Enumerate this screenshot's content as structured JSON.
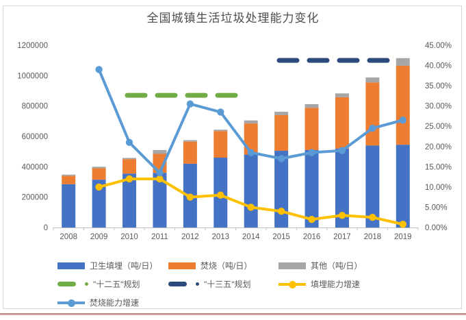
{
  "chart_data": {
    "type": "bar",
    "subtype": "stacked-bar-with-lines",
    "title": "全国城镇生活垃圾处理能力变化",
    "categories": [
      "2008",
      "2009",
      "2010",
      "2011",
      "2012",
      "2013",
      "2014",
      "2015",
      "2016",
      "2017",
      "2018",
      "2019"
    ],
    "bar_series": [
      {
        "key": "landfill",
        "name": "卫生填埋（吨/日）",
        "color": "#4472C4",
        "values": [
          285000,
          315000,
          355000,
          360000,
          420000,
          460000,
          480000,
          505000,
          510000,
          520000,
          540000,
          545000
        ]
      },
      {
        "key": "incineration",
        "name": "焚烧（吨/日）",
        "color": "#ED7D31",
        "values": [
          55000,
          75000,
          95000,
          125000,
          145000,
          175000,
          205000,
          235000,
          278000,
          338000,
          415000,
          520000
        ]
      },
      {
        "key": "other",
        "name": "其他（吨/日）",
        "color": "#A6A6A6",
        "values": [
          8000,
          10000,
          8000,
          25000,
          10000,
          9000,
          20000,
          22000,
          24000,
          25000,
          33000,
          50000
        ]
      }
    ],
    "line_series": [
      {
        "key": "landfill-growth",
        "name": "填埋能力增速",
        "color": "#FFC000",
        "axis": "right",
        "unit": "%",
        "values": [
          null,
          10,
          12,
          12,
          7.5,
          8,
          5,
          4,
          2,
          3,
          2.5,
          0.8
        ]
      },
      {
        "key": "incineration-growth",
        "name": "焚烧能力增速",
        "color": "#5B9BD5",
        "axis": "right",
        "unit": "%",
        "values": [
          null,
          39,
          21,
          13.5,
          30.5,
          28.5,
          18.5,
          17,
          18.5,
          19,
          24.5,
          26.5
        ]
      }
    ],
    "plan_lines": [
      {
        "key": "plan-12th-5yr",
        "name": "\"十二五\"规划",
        "color": "#70AD47",
        "value": 870000,
        "span": [
          "2010",
          "2013"
        ]
      },
      {
        "key": "plan-13th-5yr",
        "name": "\"十三五\"规划",
        "color": "#2A4B7C",
        "value": 1100000,
        "span": [
          "2015",
          "2019"
        ]
      }
    ],
    "left_axis": {
      "min": 0,
      "max": 1200000,
      "step": 200000,
      "values": [
        0,
        200000,
        400000,
        600000,
        800000,
        1000000,
        1200000
      ],
      "labels": [
        "0",
        "200000",
        "400000",
        "600000",
        "800000",
        "1000000",
        "1200000"
      ]
    },
    "right_axis": {
      "min": 0,
      "max": 45,
      "step": 5,
      "values": [
        0,
        5,
        10,
        15,
        20,
        25,
        30,
        35,
        40,
        45
      ],
      "labels": [
        "0.00%",
        "5.00%",
        "10.00%",
        "15.00%",
        "20.00%",
        "25.00%",
        "30.00%",
        "35.00%",
        "40.00%",
        "45.00%"
      ]
    },
    "grid": "off",
    "legend_position": "bottom-left",
    "legend_rows": [
      [
        {
          "label": "卫生填埋（吨/日）",
          "type": "bar",
          "color": "#4472C4",
          "key": "landfill"
        },
        {
          "label": "焚烧（吨/日）",
          "type": "bar",
          "color": "#ED7D31",
          "key": "incineration"
        },
        {
          "label": "其他（吨/日）",
          "type": "bar",
          "color": "#A6A6A6",
          "key": "other"
        }
      ],
      [
        {
          "label": "\"十二五\"规划",
          "type": "dash-dot",
          "color": "#70AD47",
          "key": "plan-12th-5yr"
        },
        {
          "label": "\"十三五\"规划",
          "type": "dash-dot",
          "color": "#2A4B7C",
          "key": "plan-13th-5yr"
        },
        {
          "label": "填埋能力增速",
          "type": "line-marker",
          "color": "#FFC000",
          "key": "landfill-growth"
        }
      ],
      [
        {
          "label": "焚烧能力增速",
          "type": "line-marker",
          "color": "#5B9BD5",
          "key": "incineration-growth"
        }
      ]
    ],
    "colors": {
      "axis_line": "#BFBFBF",
      "axis_text": "#595959",
      "title_text": "#4d4d4d",
      "frame_border": "#D9D9D9",
      "bottom_rule": "#bc6f6f"
    }
  }
}
